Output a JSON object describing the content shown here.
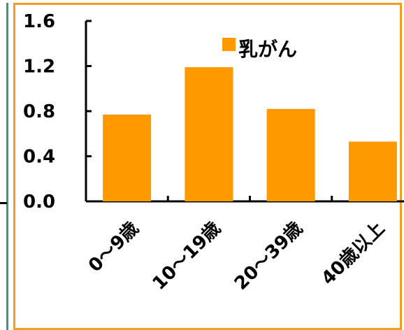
{
  "chart_data": {
    "type": "bar",
    "categories": [
      "0～9歳",
      "10～19歳",
      "20～39歳",
      "40歳以上"
    ],
    "series": [
      {
        "name": "乳がん",
        "values": [
          0.77,
          1.19,
          0.82,
          0.53
        ],
        "color": "#ff9900"
      }
    ],
    "yticks": [
      "0.0",
      "0.4",
      "0.8",
      "1.2",
      "1.6"
    ],
    "ylim": [
      0,
      1.6
    ],
    "grid": false,
    "legend": "top-right"
  }
}
